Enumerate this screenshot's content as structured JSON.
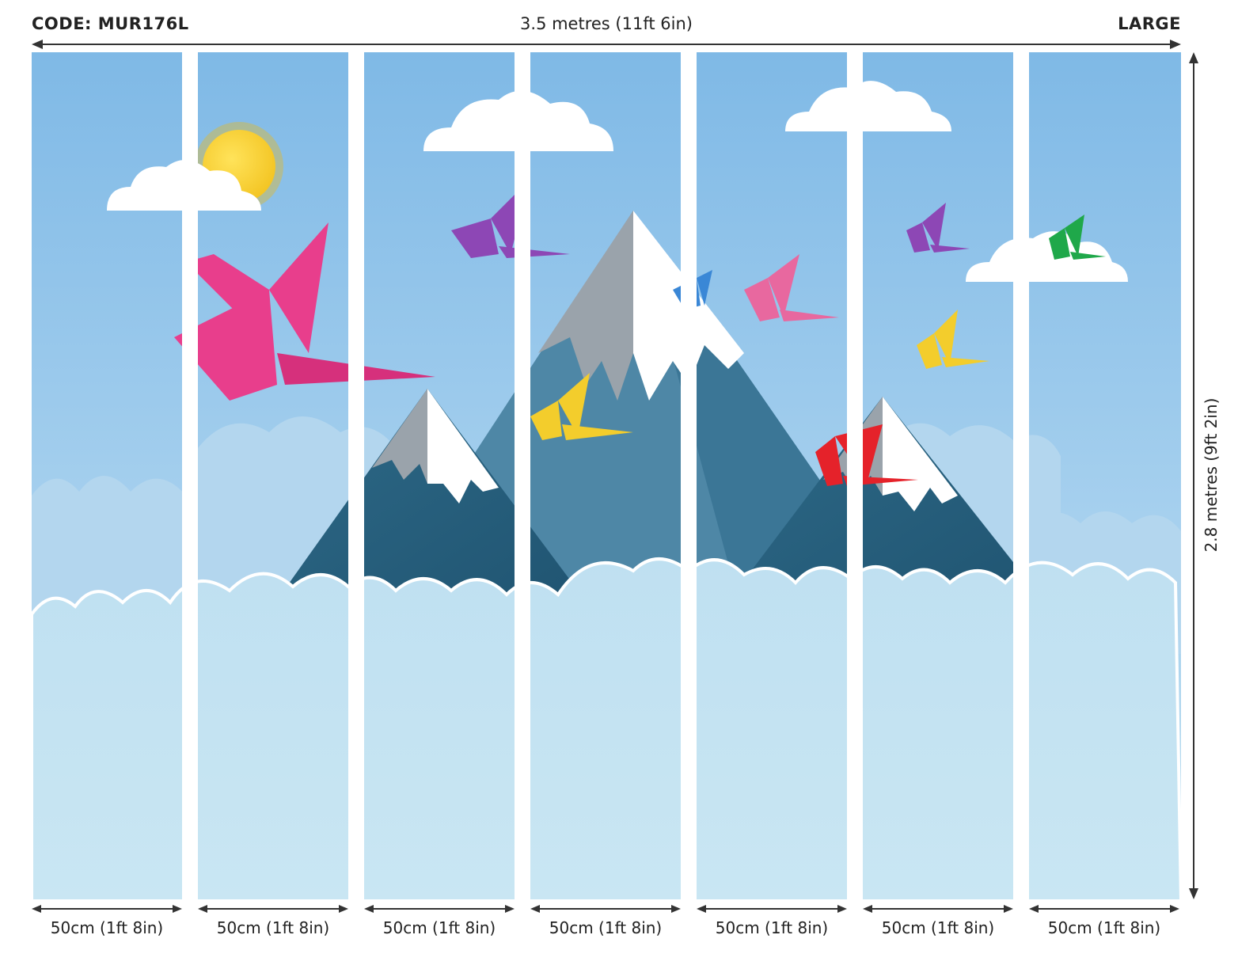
{
  "header": {
    "code": "CODE: MUR176L",
    "total_width": "3.5 metres (11ft 6in)",
    "size": "LARGE"
  },
  "height_label": "2.8 metres (9ft 2in)",
  "panels": [
    {
      "label": "50cm (1ft 8in)"
    },
    {
      "label": "50cm (1ft 8in)"
    },
    {
      "label": "50cm (1ft 8in)"
    },
    {
      "label": "50cm (1ft 8in)"
    },
    {
      "label": "50cm (1ft 8in)"
    },
    {
      "label": "50cm (1ft 8in)"
    },
    {
      "label": "50cm (1ft 8in)"
    }
  ],
  "mural": {
    "icons": [
      "sun-icon",
      "cloud-icon",
      "mountain-icon",
      "origami-crane-icon"
    ],
    "colors": {
      "sky": "#8fc3e8",
      "cloud_bank": "#c5e3f2",
      "mountain": "#2f6f8c",
      "snow": "#ffffff",
      "sun": "#f7d23a",
      "crane_pink": "#e83e8c",
      "crane_purple": "#8d47b5",
      "crane_yellow": "#f3cd2c",
      "crane_blue": "#3a87d6",
      "crane_red": "#e5222a",
      "crane_green": "#1fa84a"
    }
  }
}
